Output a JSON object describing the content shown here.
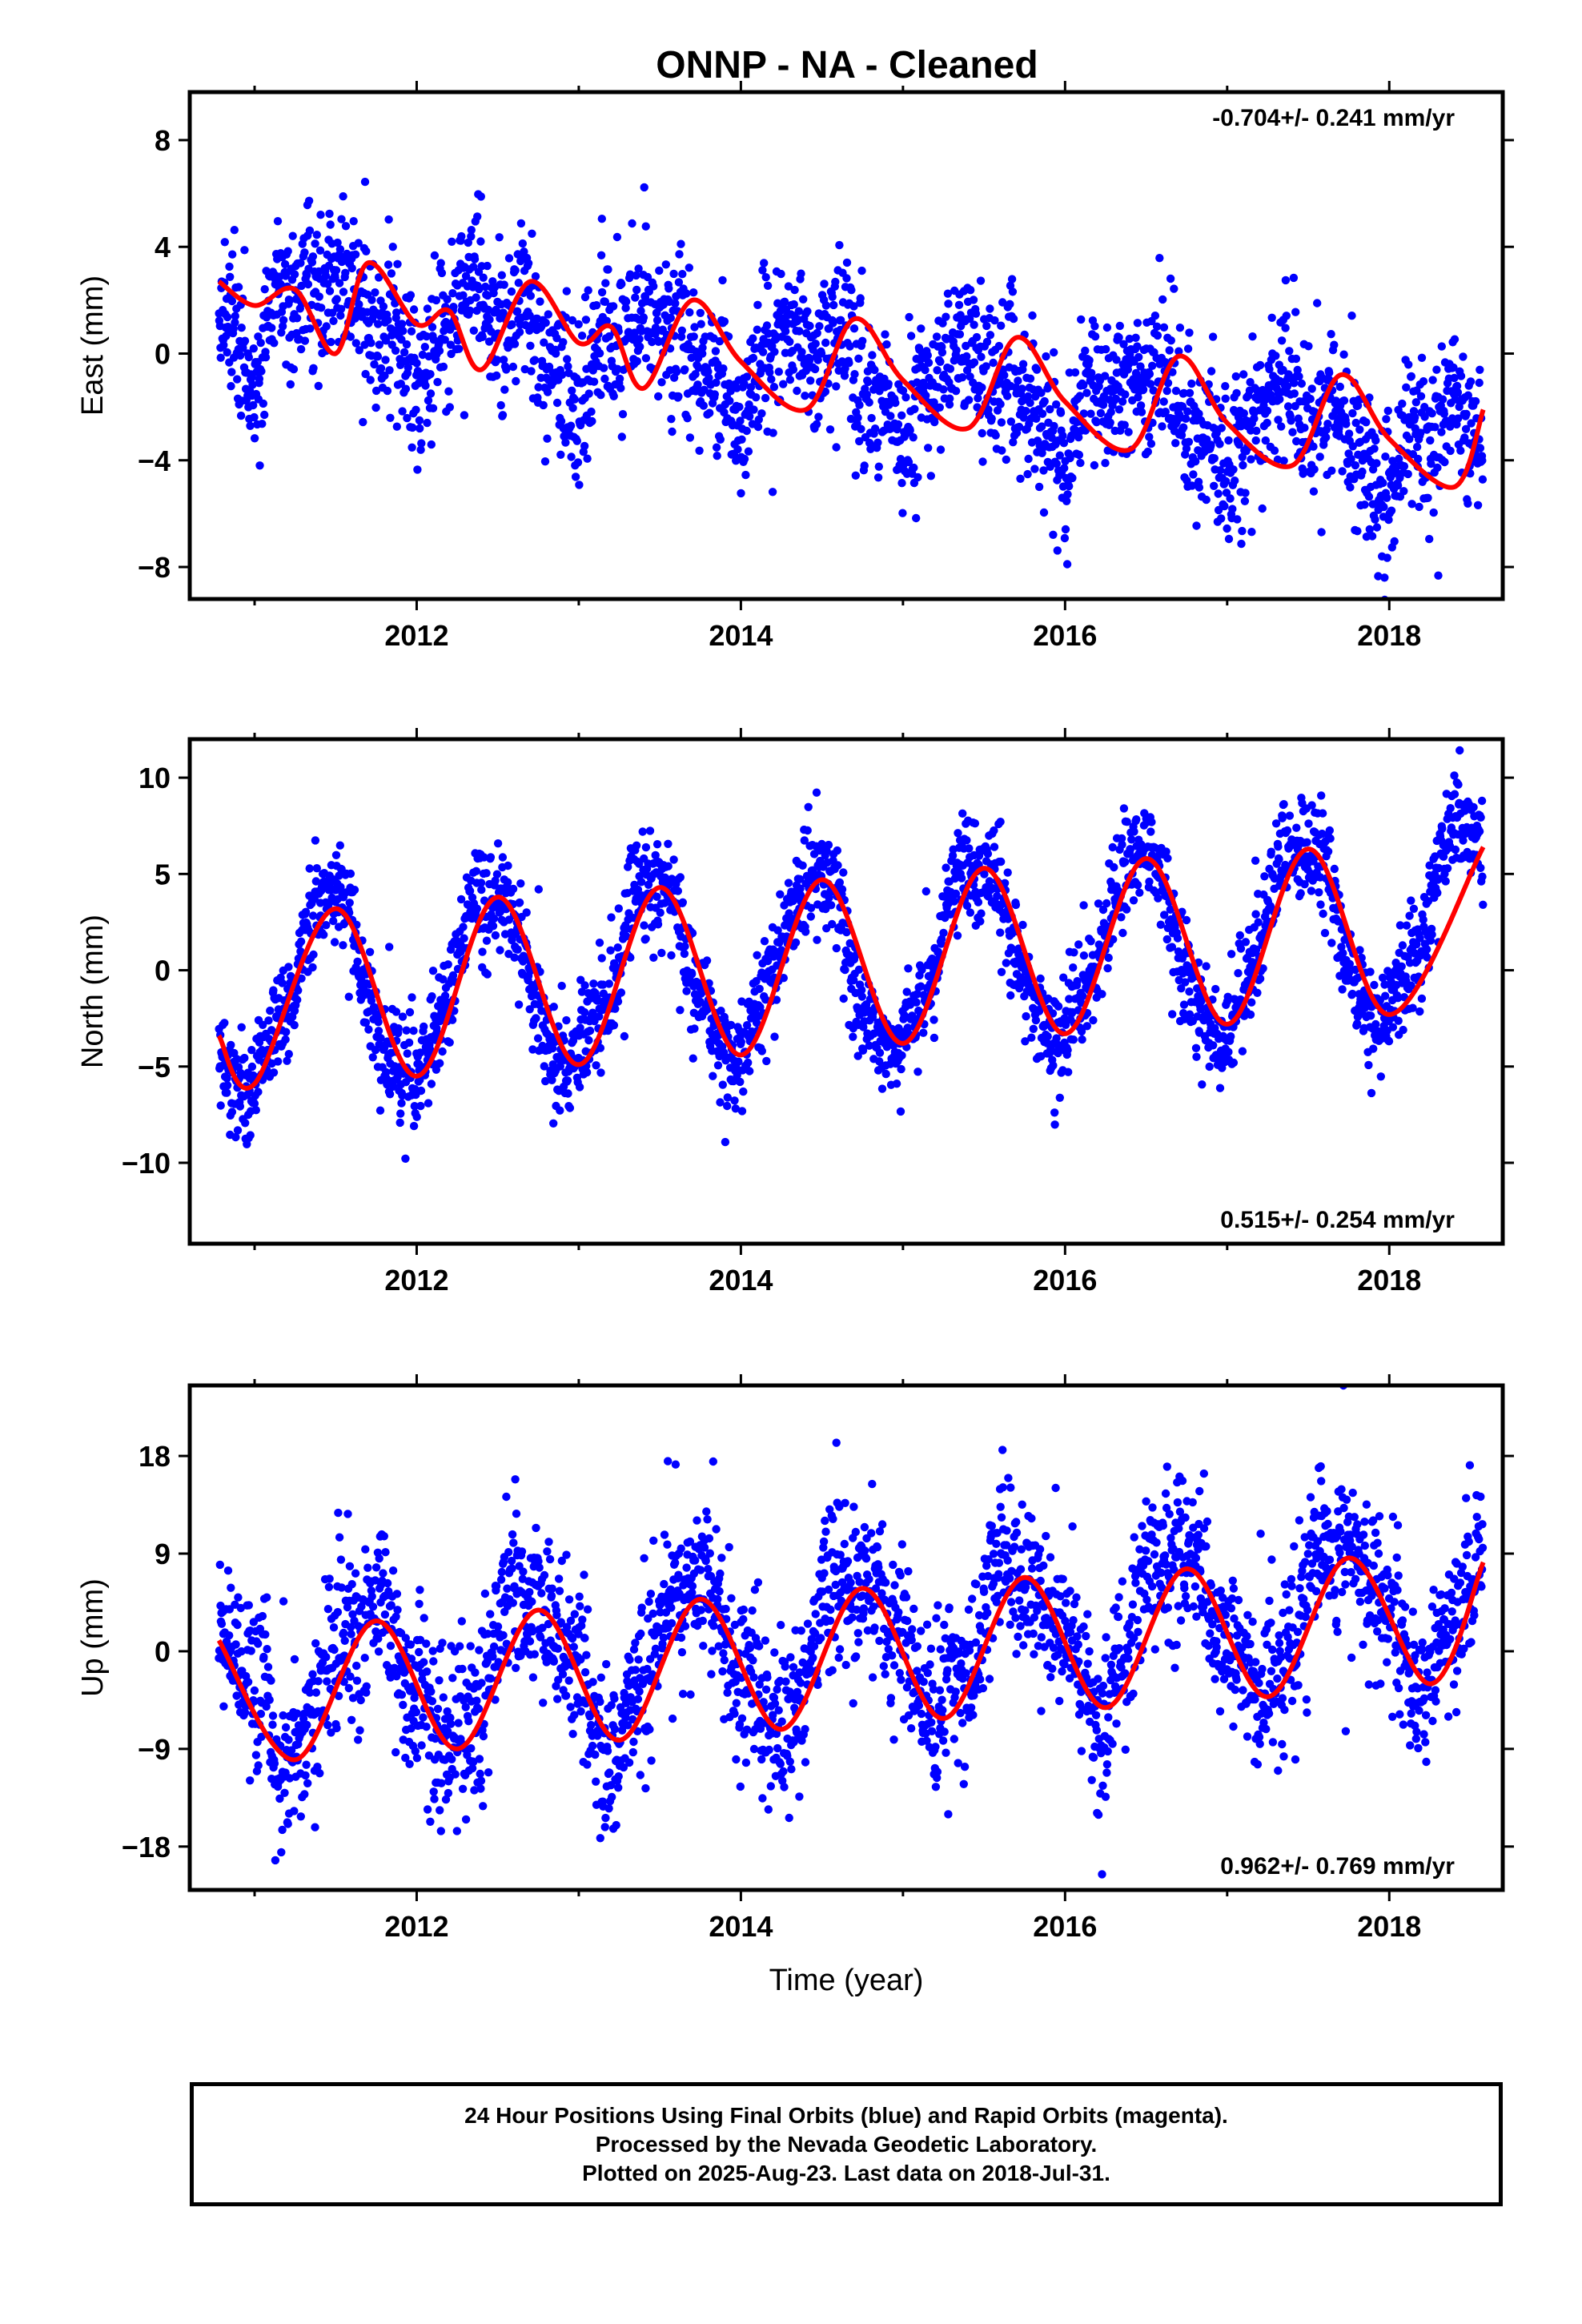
{
  "title": "ONNP  - NA - Cleaned",
  "colors": {
    "points": "#0000ff",
    "fit": "#ff0000",
    "frame": "#000000"
  },
  "chart_data": [
    {
      "type": "scatter",
      "name": "east",
      "ylabel": "East (mm)",
      "xlabel": "",
      "annotation": "-0.704+/- 0.241 mm/yr",
      "annotation_position": "top-right",
      "xlim": [
        2010.6,
        2018.7
      ],
      "ylim": [
        -9.2,
        9.8
      ],
      "xticks": [
        2012,
        2014,
        2016,
        2018
      ],
      "yticks": [
        -8,
        -4,
        0,
        4,
        8
      ],
      "ytick_labels": [
        "−8",
        "−4",
        "0",
        "4",
        "8"
      ],
      "data_start": 2010.78,
      "data_end": 2018.58,
      "model": {
        "intercept": 2.0,
        "rate": -0.704,
        "annual_amp": 1.4,
        "semiannual_amp": 0.5,
        "annual_phase": 0.2,
        "semiannual_phase": 0.6,
        "noise": 1.4
      },
      "fit_samples": [
        {
          "x": 2010.78,
          "y": 2.7
        },
        {
          "x": 2011.0,
          "y": 1.8
        },
        {
          "x": 2011.25,
          "y": 2.4
        },
        {
          "x": 2011.5,
          "y": 0.0
        },
        {
          "x": 2011.7,
          "y": 3.4
        },
        {
          "x": 2012.0,
          "y": 1.1
        },
        {
          "x": 2012.2,
          "y": 1.6
        },
        {
          "x": 2012.4,
          "y": -0.6
        },
        {
          "x": 2012.7,
          "y": 2.7
        },
        {
          "x": 2013.0,
          "y": 0.4
        },
        {
          "x": 2013.2,
          "y": 1.0
        },
        {
          "x": 2013.4,
          "y": -1.3
        },
        {
          "x": 2013.7,
          "y": 2.0
        },
        {
          "x": 2014.0,
          "y": -0.3
        },
        {
          "x": 2014.4,
          "y": -2.1
        },
        {
          "x": 2014.7,
          "y": 1.3
        },
        {
          "x": 2015.0,
          "y": -1.0
        },
        {
          "x": 2015.4,
          "y": -2.8
        },
        {
          "x": 2015.7,
          "y": 0.6
        },
        {
          "x": 2016.0,
          "y": -1.8
        },
        {
          "x": 2016.4,
          "y": -3.6
        },
        {
          "x": 2016.7,
          "y": -0.1
        },
        {
          "x": 2017.0,
          "y": -2.6
        },
        {
          "x": 2017.4,
          "y": -4.2
        },
        {
          "x": 2017.7,
          "y": -0.8
        },
        {
          "x": 2018.0,
          "y": -3.2
        },
        {
          "x": 2018.4,
          "y": -5.0
        },
        {
          "x": 2018.58,
          "y": -2.1
        }
      ]
    },
    {
      "type": "scatter",
      "name": "north",
      "ylabel": "North (mm)",
      "xlabel": "",
      "annotation": "0.515+/- 0.254 mm/yr",
      "annotation_position": "bottom-right",
      "xlim": [
        2010.6,
        2018.7
      ],
      "ylim": [
        -14.2,
        12.0
      ],
      "xticks": [
        2012,
        2014,
        2016,
        2018
      ],
      "yticks": [
        -10,
        -5,
        0,
        5,
        10
      ],
      "ytick_labels": [
        "−10",
        "−5",
        "0",
        "5",
        "10"
      ],
      "data_start": 2010.78,
      "data_end": 2018.58,
      "model": {
        "intercept": -1.5,
        "rate": 0.515,
        "annual_amp": 4.8,
        "semiannual_amp": 0.3,
        "annual_phase": 1.2,
        "semiannual_phase": 0.4,
        "noise": 1.3
      },
      "fit_samples": [
        {
          "x": 2010.78,
          "y": -3.4
        },
        {
          "x": 2011.0,
          "y": -5.9
        },
        {
          "x": 2011.5,
          "y": 3.2
        },
        {
          "x": 2012.0,
          "y": -5.5
        },
        {
          "x": 2012.5,
          "y": 3.8
        },
        {
          "x": 2013.0,
          "y": -4.9
        },
        {
          "x": 2013.5,
          "y": 4.3
        },
        {
          "x": 2014.0,
          "y": -4.4
        },
        {
          "x": 2014.5,
          "y": 4.7
        },
        {
          "x": 2015.0,
          "y": -3.8
        },
        {
          "x": 2015.5,
          "y": 5.3
        },
        {
          "x": 2016.0,
          "y": -3.3
        },
        {
          "x": 2016.5,
          "y": 5.8
        },
        {
          "x": 2017.0,
          "y": -2.8
        },
        {
          "x": 2017.5,
          "y": 6.3
        },
        {
          "x": 2018.0,
          "y": -2.3
        },
        {
          "x": 2018.58,
          "y": 6.4
        }
      ]
    },
    {
      "type": "scatter",
      "name": "up",
      "ylabel": "Up (mm)",
      "xlabel": "Time (year)",
      "annotation": "0.962+/- 0.769 mm/yr",
      "annotation_position": "bottom-right",
      "xlim": [
        2010.6,
        2018.7
      ],
      "ylim": [
        -22.0,
        24.5
      ],
      "xticks": [
        2012,
        2014,
        2016,
        2018
      ],
      "yticks": [
        -18,
        -9,
        0,
        9,
        18
      ],
      "ytick_labels": [
        "−18",
        "−9",
        "0",
        "9",
        "18"
      ],
      "data_start": 2010.78,
      "data_end": 2018.58,
      "model": {
        "intercept": -3.0,
        "rate": 0.962,
        "annual_amp": 6.5,
        "semiannual_amp": 0.8,
        "annual_phase": 0.45,
        "semiannual_phase": 0.9,
        "noise": 3.6
      },
      "fit_samples": [
        {
          "x": 2010.78,
          "y": 1.0
        },
        {
          "x": 2011.25,
          "y": -10.0
        },
        {
          "x": 2011.75,
          "y": 2.8
        },
        {
          "x": 2012.25,
          "y": -9.0
        },
        {
          "x": 2012.75,
          "y": 3.8
        },
        {
          "x": 2013.25,
          "y": -8.2
        },
        {
          "x": 2013.75,
          "y": 4.8
        },
        {
          "x": 2014.25,
          "y": -7.2
        },
        {
          "x": 2014.75,
          "y": 5.8
        },
        {
          "x": 2015.25,
          "y": -6.2
        },
        {
          "x": 2015.75,
          "y": 6.8
        },
        {
          "x": 2016.25,
          "y": -5.2
        },
        {
          "x": 2016.75,
          "y": 7.6
        },
        {
          "x": 2017.25,
          "y": -4.2
        },
        {
          "x": 2017.75,
          "y": 8.6
        },
        {
          "x": 2018.25,
          "y": -3.0
        },
        {
          "x": 2018.58,
          "y": 8.2
        }
      ]
    }
  ],
  "footer": {
    "line1": "24 Hour Positions Using Final Orbits (blue) and Rapid Orbits (magenta).",
    "line2": "Processed by the Nevada Geodetic Laboratory.",
    "line3": "Plotted on 2025-Aug-23. Last data on 2018-Jul-31."
  }
}
